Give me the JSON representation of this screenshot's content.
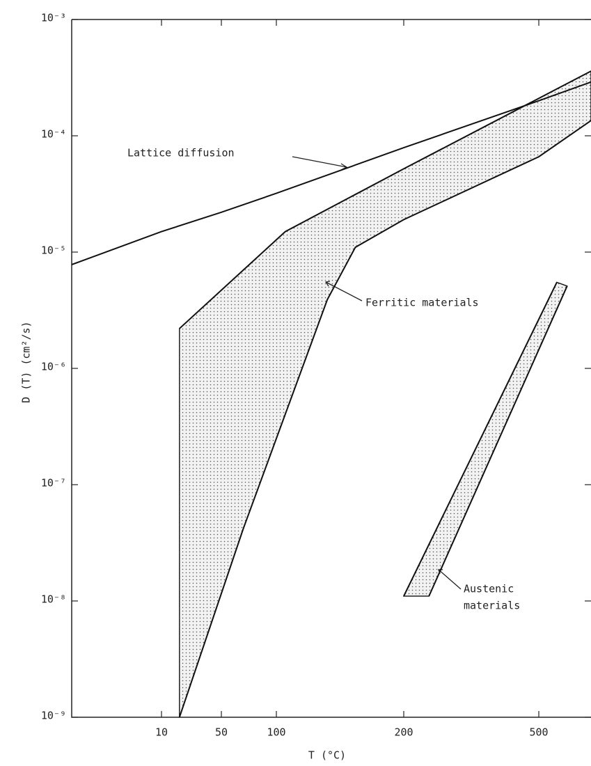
{
  "chart_data": {
    "type": "line",
    "x_label": "T (°C)",
    "y_label": "D (T) (cm²/s)",
    "yscale": "log",
    "xlim": [
      -50,
      616
    ],
    "ylim": [
      1e-09,
      0.001
    ],
    "xticks": [
      10,
      50,
      100,
      200,
      500
    ],
    "yticks": [
      {
        "value": 1e-09,
        "label": "10⁻⁹"
      },
      {
        "value": 1e-08,
        "label": "10⁻⁸"
      },
      {
        "value": 1e-07,
        "label": "10⁻⁷"
      },
      {
        "value": 1e-06,
        "label": "10⁻⁶"
      },
      {
        "value": 1e-05,
        "label": "10⁻⁵"
      },
      {
        "value": 0.0001,
        "label": "10⁻⁴"
      },
      {
        "value": 0.001,
        "label": "10⁻³"
      }
    ],
    "series": [
      {
        "color": "#111111",
        "x": [
          -50,
          10,
          50,
          100,
          200,
          500,
          616
        ],
        "values": [
          7.8e-06,
          1.5e-05,
          2.2e-05,
          3.2e-05,
          7.9e-05,
          0.0002,
          0.00029
        ]
      },
      {
        "color": "#111111",
        "x": [
          22,
          107,
          200,
          500,
          616
        ],
        "values": [
          2.2e-06,
          1.5e-05,
          5.2e-05,
          0.00021,
          0.00036
        ]
      },
      {
        "color": "#111111",
        "x": [
          22,
          70,
          140,
          162,
          200,
          500,
          616
        ],
        "values": [
          1e-09,
          4.2e-08,
          3.9e-06,
          1.1e-05,
          1.9e-05,
          6.6e-05,
          0.000135
        ]
      },
      {
        "color": "#111111",
        "x": [
          200,
          540
        ],
        "values": [
          1.1e-08,
          5.5e-06
        ]
      },
      {
        "color": "#111111",
        "x": [
          256,
          563
        ],
        "values": [
          1.1e-08,
          5.1e-06
        ]
      }
    ],
    "annotations": [
      "Lattice diffusion",
      "Ferritic materials",
      "Austenic",
      "materials"
    ]
  }
}
